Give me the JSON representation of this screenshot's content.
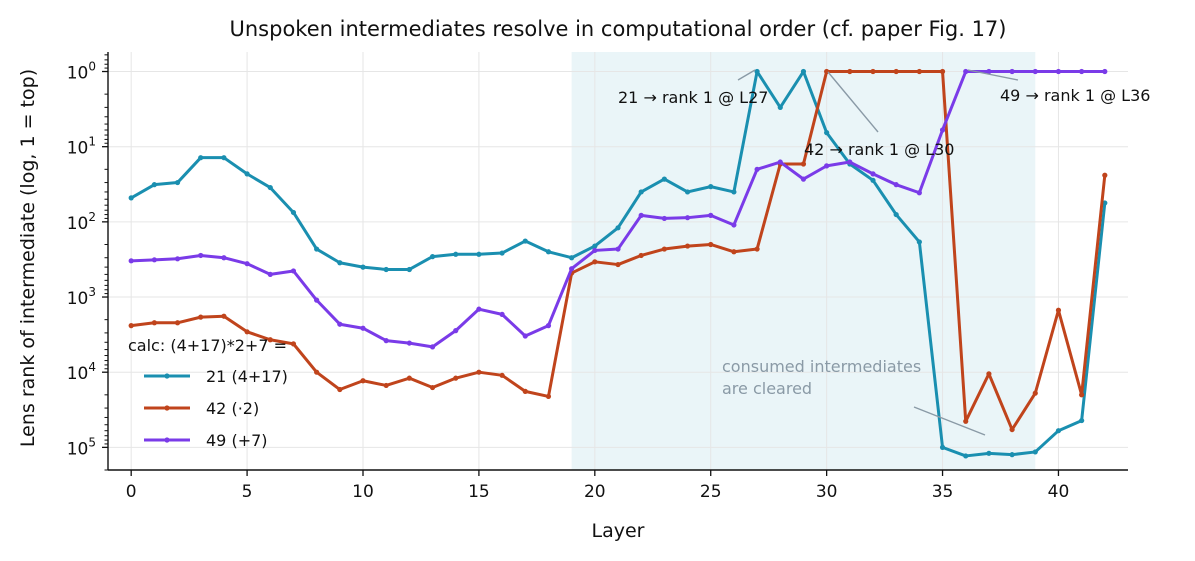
{
  "chart_data": {
    "type": "line",
    "title": "Unspoken intermediates resolve in computational order (cf. paper Fig. 17)",
    "xlabel": "Layer",
    "ylabel": "Lens rank of intermediate (log, 1 = top)",
    "x_ticks": [
      0,
      5,
      10,
      15,
      20,
      25,
      30,
      35,
      40
    ],
    "y_ticks": [
      {
        "value": 1,
        "base": "10",
        "exp": "0"
      },
      {
        "value": 10,
        "base": "10",
        "exp": "1"
      },
      {
        "value": 100,
        "base": "10",
        "exp": "2"
      },
      {
        "value": 1000,
        "base": "10",
        "exp": "3"
      },
      {
        "value": 10000,
        "base": "10",
        "exp": "4"
      },
      {
        "value": 100000,
        "base": "10",
        "exp": "5"
      }
    ],
    "xlim": [
      -1,
      43
    ],
    "ylim": [
      200000,
      0.55
    ],
    "y_scale": "log",
    "y_inverted": true,
    "grid": true,
    "shaded_region": {
      "x": [
        19,
        39
      ],
      "color": "#eaf5f8"
    },
    "legend": {
      "title": "calc: (4+17)*2+7 =",
      "placement": "left"
    },
    "x": [
      0,
      1,
      2,
      3,
      4,
      5,
      6,
      7,
      8,
      9,
      10,
      11,
      12,
      13,
      14,
      15,
      16,
      17,
      18,
      19,
      20,
      21,
      22,
      23,
      24,
      25,
      26,
      27,
      28,
      29,
      30,
      31,
      32,
      33,
      34,
      35,
      36,
      37,
      38,
      39,
      40,
      41,
      42
    ],
    "series": [
      {
        "name": "21  (4+17)",
        "color": "#1a8fb0",
        "values": [
          48,
          32,
          30,
          14,
          14,
          23,
          35,
          75,
          230,
          350,
          400,
          430,
          430,
          290,
          270,
          270,
          260,
          180,
          250,
          300,
          210,
          120,
          40,
          27,
          40,
          34,
          40,
          1,
          3,
          1,
          6.5,
          17,
          28,
          80,
          185,
          100000,
          130000,
          120000,
          125000,
          115000,
          60000,
          44000,
          56
        ]
      },
      {
        "name": "42  (·2)",
        "color": "#c0441c",
        "values": [
          2400,
          2200,
          2200,
          1850,
          1800,
          2900,
          3700,
          4200,
          10000,
          17000,
          13000,
          15000,
          12000,
          16000,
          12000,
          10000,
          11000,
          18000,
          21000,
          480,
          340,
          370,
          280,
          230,
          210,
          200,
          250,
          230,
          17,
          17,
          1,
          1,
          1,
          1,
          1,
          1,
          45000,
          10500,
          58000,
          19000,
          1500,
          20000,
          24
        ]
      },
      {
        "name": "49  (+7)",
        "color": "#7a3be8",
        "values": [
          330,
          320,
          310,
          280,
          300,
          360,
          500,
          450,
          1100,
          2300,
          2600,
          3800,
          4100,
          4600,
          2800,
          1450,
          1700,
          3300,
          2400,
          420,
          240,
          230,
          82,
          90,
          88,
          82,
          110,
          20,
          16,
          27,
          18,
          16,
          23,
          32,
          41,
          6,
          1,
          1,
          1,
          1,
          1,
          1,
          1
        ]
      }
    ],
    "annotations": [
      {
        "text": "21 → rank 1 @ L27",
        "x": 27,
        "y": 1
      },
      {
        "text": "42 → rank 1 @ L30",
        "x": 30,
        "y": 1
      },
      {
        "text": "49 → rank 1 @ L36",
        "x": 36,
        "y": 1
      },
      {
        "text_lines": [
          "consumed intermediates",
          "are cleared"
        ],
        "x": 37,
        "y": 130000
      }
    ]
  }
}
